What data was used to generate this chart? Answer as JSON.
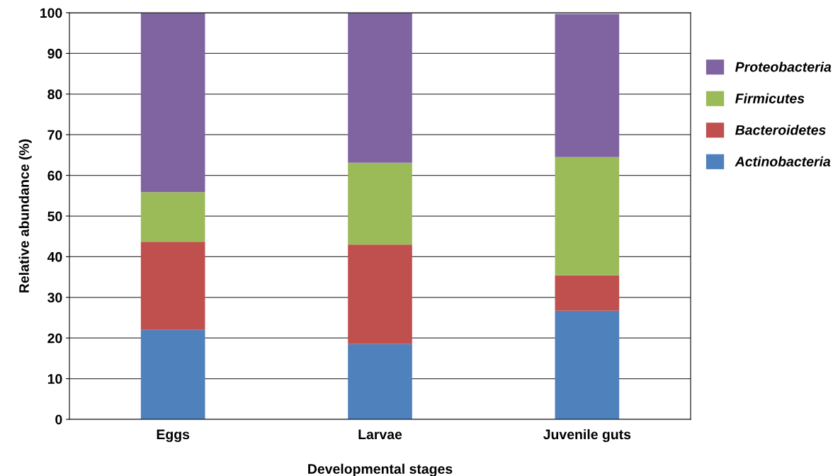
{
  "chart_data": {
    "type": "bar",
    "stacked": true,
    "xlabel": "Developmental stages",
    "ylabel": "Relative abundance (%)",
    "categories": [
      "Eggs",
      "Larvae",
      "Juvenile guts"
    ],
    "series": [
      {
        "name": "Actinobacteria",
        "color": "#4f81bd",
        "values": [
          22.0,
          18.5,
          26.7
        ]
      },
      {
        "name": "Bacteroidetes",
        "color": "#c0504d",
        "values": [
          21.7,
          24.5,
          8.7
        ]
      },
      {
        "name": "Firmicutes",
        "color": "#9bbb59",
        "values": [
          12.2,
          20.1,
          29.1
        ]
      },
      {
        "name": "Proteobacteria",
        "color": "#8064a2",
        "values": [
          44.1,
          36.9,
          35.2
        ]
      }
    ],
    "ylim": [
      0,
      100
    ],
    "yticks": [
      0,
      10,
      20,
      30,
      40,
      50,
      60,
      70,
      80,
      90,
      100
    ],
    "grid": "y",
    "legend": "right"
  }
}
